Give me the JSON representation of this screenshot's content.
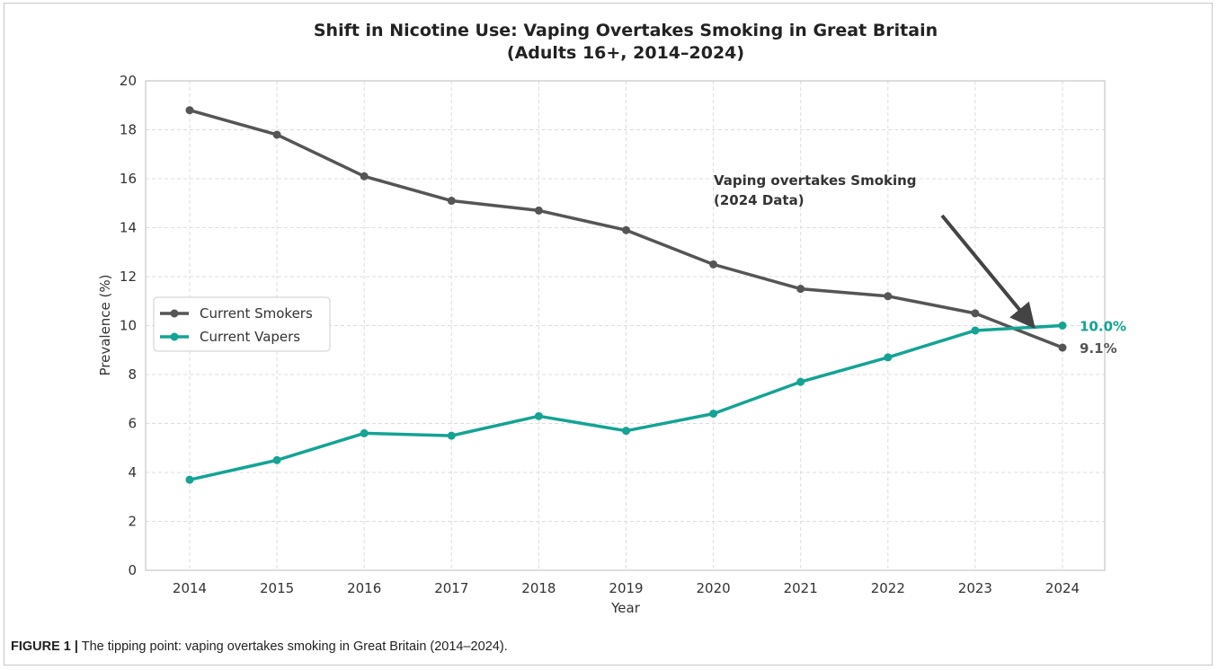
{
  "chart_data": {
    "type": "line",
    "title": "Shift in Nicotine Use: Vaping Overtakes Smoking in Great Britain",
    "subtitle": "(Adults 16+, 2014–2024)",
    "xlabel": "Year",
    "ylabel": "Prevalence (%)",
    "ylim": [
      0,
      20
    ],
    "yticks": [
      0,
      2,
      4,
      6,
      8,
      10,
      12,
      14,
      16,
      18,
      20
    ],
    "categories": [
      "2014",
      "2015",
      "2016",
      "2017",
      "2018",
      "2019",
      "2020",
      "2021",
      "2022",
      "2023",
      "2024"
    ],
    "grid": true,
    "legend_position": "center-left",
    "series": [
      {
        "name": "Current Smokers",
        "color": "#555555",
        "values": [
          18.8,
          17.8,
          16.1,
          15.1,
          14.7,
          13.9,
          12.5,
          11.5,
          11.2,
          10.5,
          9.1
        ],
        "end_label": "9.1%"
      },
      {
        "name": "Current Vapers",
        "color": "#14a394",
        "values": [
          3.7,
          4.5,
          5.6,
          5.5,
          6.3,
          5.7,
          6.4,
          7.7,
          8.7,
          9.8,
          10.0
        ],
        "end_label": "10.0%"
      }
    ],
    "annotation": {
      "line1": "Vaping overtakes Smoking",
      "line2": "(2024 Data)"
    }
  },
  "caption": {
    "label": "FIGURE 1 |",
    "text": " The tipping point: vaping overtakes smoking in Great Britain (2014–2024)."
  }
}
